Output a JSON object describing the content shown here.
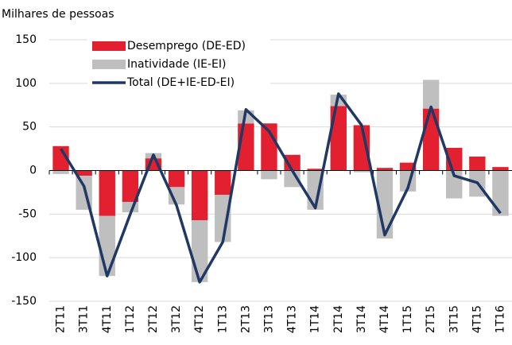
{
  "chart_data": {
    "type": "bar",
    "y_label": "Milhares de pessoas",
    "categories": [
      "2T11",
      "3T11",
      "4T11",
      "1T12",
      "2T12",
      "3T12",
      "4T12",
      "1T13",
      "2T13",
      "3T13",
      "4T13",
      "1T14",
      "2T14",
      "3T14",
      "4T14",
      "1T15",
      "2T15",
      "3T15",
      "4T15",
      "1T16"
    ],
    "series": [
      {
        "name": "Desemprego (DE-ED)",
        "color": "#e3202f",
        "type": "bar",
        "values": [
          28,
          -6,
          -52,
          -36,
          14,
          -19,
          -57,
          -28,
          54,
          54,
          18,
          2,
          74,
          52,
          3,
          9,
          71,
          26,
          16,
          4
        ]
      },
      {
        "name": "Inatividade (IE-EI)",
        "color": "#bfbfbf",
        "type": "bar",
        "values": [
          -4,
          -39,
          -69,
          -12,
          6,
          -20,
          -71,
          -54,
          15,
          -10,
          -19,
          -45,
          13,
          -2,
          -78,
          -24,
          33,
          -32,
          -30,
          -52
        ]
      },
      {
        "name": "Total (DE+IE-ED-EI)",
        "color": "#1f3864",
        "type": "line",
        "values": [
          25,
          -18,
          -121,
          -50,
          18,
          -40,
          -128,
          -82,
          70,
          45,
          0,
          -43,
          88,
          52,
          -74,
          -20,
          73,
          -6,
          -14,
          -49
        ]
      }
    ],
    "ylim": [
      -150,
      150
    ],
    "yticks": [
      -150,
      -100,
      -50,
      0,
      50,
      100,
      150
    ],
    "grid": true,
    "stacked": true,
    "legend": "top"
  }
}
